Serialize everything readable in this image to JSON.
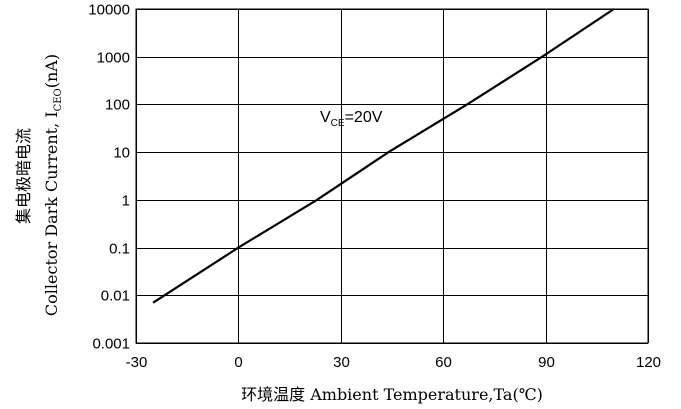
{
  "chart_data": {
    "type": "line",
    "xlabel": "环境温度 Ambient Temperature,Ta(℃)",
    "ylabel": {
      "line1": "集电极暗电流",
      "line2_prefix": "Collector Dark Current, I",
      "line2_sub": "CEO",
      "line2_suffix": "(nA)"
    },
    "xlim": [
      -30,
      120
    ],
    "ylim": [
      0.001,
      10000
    ],
    "yscale": "log",
    "grid": true,
    "x_ticks": [
      "-30",
      "0",
      "30",
      "60",
      "90",
      "120"
    ],
    "y_ticks": [
      "0.001",
      "0.01",
      "0.1",
      "1",
      "10",
      "100",
      "1000",
      "10000"
    ],
    "annotation": {
      "main": "V",
      "sub": "CE",
      "rest": "=20V"
    },
    "series": [
      {
        "x": [
          -25,
          0,
          23,
          44,
          67,
          89,
          110
        ],
        "y": [
          0.007,
          0.1,
          1,
          10,
          100,
          1000,
          10000
        ]
      }
    ]
  }
}
